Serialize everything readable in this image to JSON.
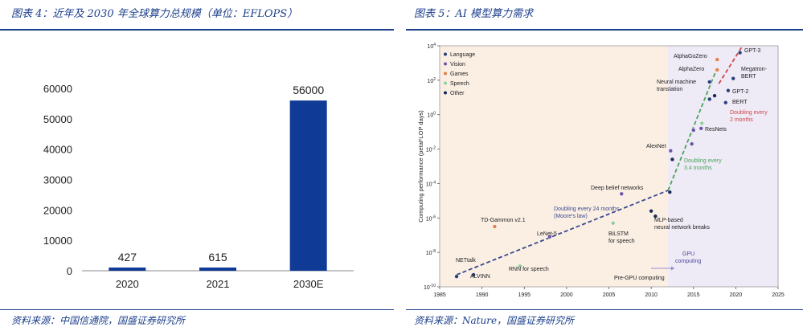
{
  "left_panel": {
    "title": "图表 4：近年及 2030 年全球算力总规模（单位：EFLOPS）",
    "source": "资料来源：中国信通院，国盛证券研究所"
  },
  "right_panel": {
    "title": "图表 5：AI 模型算力需求",
    "source": "资料来源：Nature，国盛证券研究所"
  },
  "chart_data": [
    {
      "type": "bar",
      "title": "",
      "categories": [
        "2020",
        "2021",
        "2030E"
      ],
      "values": [
        427,
        615,
        56000
      ],
      "value_labels": [
        "427",
        "615",
        "56000"
      ],
      "ylim": [
        0,
        60000
      ],
      "yticks": [
        0,
        10000,
        20000,
        30000,
        40000,
        50000,
        60000
      ],
      "bar_color": "#0f3a96",
      "grid": false
    },
    {
      "type": "scatter",
      "title": "",
      "xlabel": "",
      "ylabel": "Computing performance (petaFLOP days)",
      "y_scale": "log",
      "xlim": [
        1985,
        2025
      ],
      "ylim_exp": [
        -10,
        4
      ],
      "xticks": [
        1985,
        1990,
        1995,
        2000,
        2005,
        2010,
        2015,
        2020,
        2025
      ],
      "ytick_exps": [
        -10,
        -8,
        -6,
        -4,
        -2,
        0,
        2,
        4
      ],
      "legend": {
        "placement": "top-left",
        "items": [
          {
            "label": "Language",
            "color": "#2a3f7a"
          },
          {
            "label": "Vision",
            "color": "#6a55a8"
          },
          {
            "label": "Games",
            "color": "#e0804a"
          },
          {
            "label": "Speech",
            "color": "#8fcf9a"
          },
          {
            "label": "Other",
            "color": "#1a2a55"
          }
        ]
      },
      "regions": [
        {
          "label": "Pre-GPU computing",
          "x_from": 1985,
          "x_to": 2012,
          "color": "#fbefe4"
        },
        {
          "label": "GPU computing",
          "x_from": 2012,
          "x_to": 2025,
          "color": "#eeeaf6"
        }
      ],
      "points": [
        {
          "label": "NETtalk",
          "x": 1987,
          "y_exp": -9.4,
          "color": "#2a3f7a"
        },
        {
          "label": "ALVINN",
          "x": 1989,
          "y_exp": -9.3,
          "color": "#2a3f7a"
        },
        {
          "label": "TD-Gammon v2.1",
          "x": 1991.5,
          "y_exp": -6.5,
          "color": "#e0804a"
        },
        {
          "label": "RNN for speech",
          "x": 1994.5,
          "y_exp": -8.8,
          "color": "#8fcf9a"
        },
        {
          "label": "LeNet-5",
          "x": 1998,
          "y_exp": -7.1,
          "color": "#6a55a8"
        },
        {
          "label": "BiLSTM for speech",
          "x": 2005.5,
          "y_exp": -6.3,
          "color": "#8fcf9a"
        },
        {
          "label": "Deep belief networks",
          "x": 2006.5,
          "y_exp": -4.6,
          "color": "#6a55a8"
        },
        {
          "label": "",
          "x": 2010,
          "y_exp": -5.6,
          "color": "#1a2a55"
        },
        {
          "label": "MLP-based neural network breaks",
          "x": 2010.5,
          "y_exp": -5.9,
          "color": "#1a2a55"
        },
        {
          "label": "",
          "x": 2012.2,
          "y_exp": -4.5,
          "color": "#1a2a55"
        },
        {
          "label": "AlexNet",
          "x": 2012.3,
          "y_exp": -2.1,
          "color": "#6a55a8"
        },
        {
          "label": "",
          "x": 2012.5,
          "y_exp": -2.6,
          "color": "#1a2a55"
        },
        {
          "label": "",
          "x": 2014.8,
          "y_exp": -1.7,
          "color": "#6a55a8"
        },
        {
          "label": "",
          "x": 2015,
          "y_exp": -0.9,
          "color": "#6a55a8"
        },
        {
          "label": "ResNets",
          "x": 2015.9,
          "y_exp": -0.8,
          "color": "#6a55a8"
        },
        {
          "label": "",
          "x": 2016,
          "y_exp": -0.5,
          "color": "#8fcf9a"
        },
        {
          "label": "",
          "x": 2016.9,
          "y_exp": 0.9,
          "color": "#2a3f7a"
        },
        {
          "label": "Neural machine translation",
          "x": 2016.9,
          "y_exp": 1.9,
          "color": "#2a3f7a"
        },
        {
          "label": "",
          "x": 2017.5,
          "y_exp": 1.1,
          "color": "#1a2a55"
        },
        {
          "label": "AlphaZero",
          "x": 2017.8,
          "y_exp": 2.6,
          "color": "#e0804a"
        },
        {
          "label": "AlphaGoZero",
          "x": 2017.8,
          "y_exp": 3.2,
          "color": "#e0804a"
        },
        {
          "label": "BERT",
          "x": 2018.8,
          "y_exp": 0.7,
          "color": "#2a3f7a"
        },
        {
          "label": "GPT-2",
          "x": 2019.1,
          "y_exp": 1.4,
          "color": "#2a3f7a"
        },
        {
          "label": "Megatron-BERT",
          "x": 2019.7,
          "y_exp": 2.1,
          "color": "#2a3f7a"
        },
        {
          "label": "GPT-3",
          "x": 2020.5,
          "y_exp": 3.6,
          "color": "#2a3f7a"
        }
      ],
      "trends": [
        {
          "label": "Doubling every 24 months (Moore's law)",
          "x": [
            1987,
            2012
          ],
          "y_exp": [
            -9.3,
            -4.4
          ],
          "color": "#3b4a8c"
        },
        {
          "label": "Doubling every 3.4 months",
          "x": [
            2012,
            2017.7
          ],
          "y_exp": [
            -4.4,
            2.6
          ],
          "color": "#4aa55a"
        },
        {
          "label": "Doubling every 2 months",
          "x": [
            2018,
            2020.8
          ],
          "y_exp": [
            1.8,
            4.0
          ],
          "color": "#d04848"
        }
      ]
    }
  ]
}
